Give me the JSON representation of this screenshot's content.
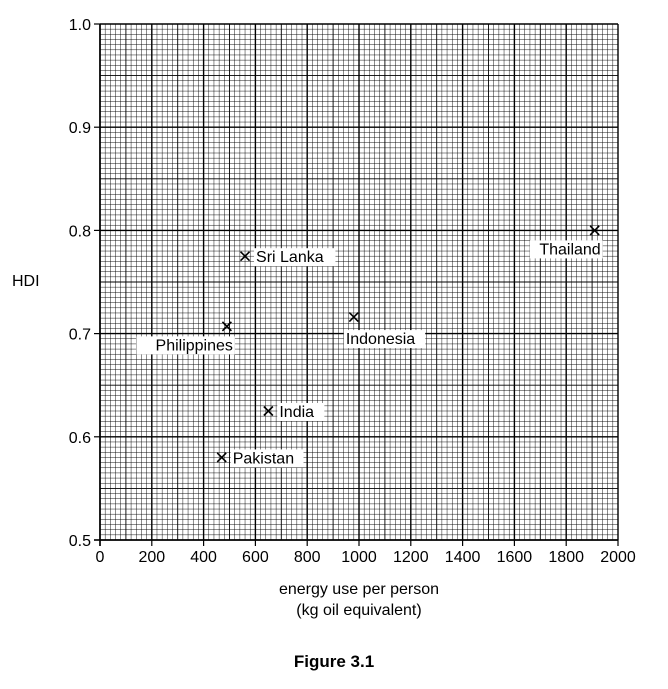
{
  "chart_data": {
    "type": "scatter",
    "xlabel_line1": "energy use per person",
    "xlabel_line2": "(kg oil equivalent)",
    "ylabel": "HDI",
    "caption": "Figure 3.1",
    "xlim": [
      0,
      2000
    ],
    "ylim": [
      0.5,
      1.0
    ],
    "x_ticks": [
      0,
      200,
      400,
      600,
      800,
      1000,
      1200,
      1400,
      1600,
      1800,
      2000
    ],
    "y_ticks": [
      "0.5",
      "0.6",
      "0.7",
      "0.8",
      "0.9",
      "1.0"
    ],
    "grid": true,
    "marker": "x",
    "points": [
      {
        "label": "Sri Lanka",
        "x": 560,
        "y": 0.775,
        "label_pos": "right"
      },
      {
        "label": "Philippines",
        "x": 490,
        "y": 0.707,
        "label_pos": "below-left"
      },
      {
        "label": "Indonesia",
        "x": 980,
        "y": 0.716,
        "label_pos": "below-right"
      },
      {
        "label": "India",
        "x": 650,
        "y": 0.625,
        "label_pos": "right"
      },
      {
        "label": "Pakistan",
        "x": 470,
        "y": 0.58,
        "label_pos": "right"
      },
      {
        "label": "Thailand",
        "x": 1910,
        "y": 0.8,
        "label_pos": "below-left"
      }
    ]
  }
}
